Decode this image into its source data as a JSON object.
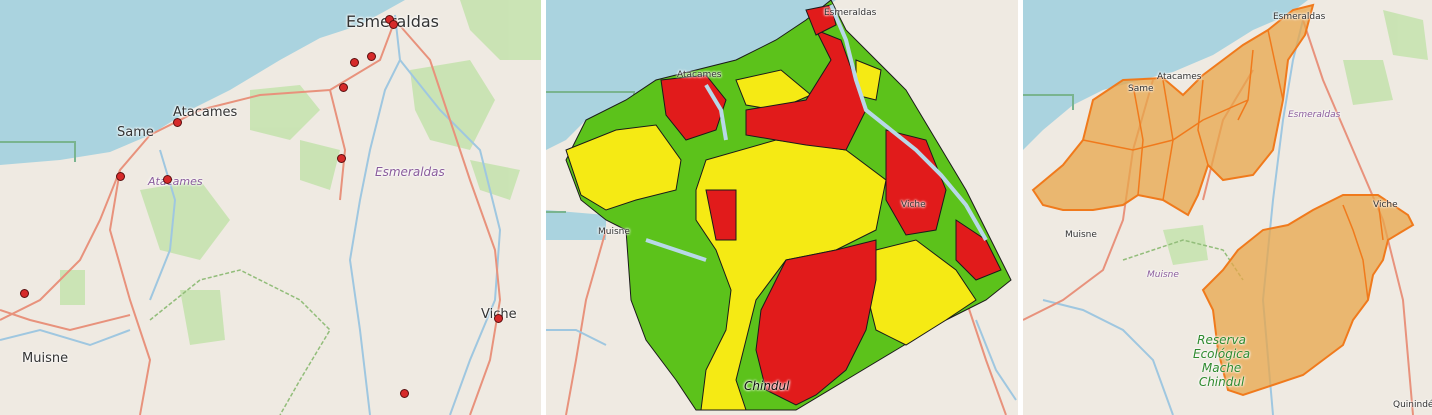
{
  "panels": [
    {
      "id": "occurrence-points",
      "labels": {
        "esmeraldas_city": "Esmeraldas",
        "atacames_town": "Atacames",
        "same_town": "Same",
        "atacames_region": "Atacames",
        "esmeraldas_region": "Esmeraldas",
        "muisne_town": "Muisne",
        "viche_town": "Viche"
      },
      "point_count": 13,
      "marker_color": "#d62a2a"
    },
    {
      "id": "suitability-classes",
      "labels": {
        "esmeraldas_city": "Esmeraldas",
        "atacames_town": "Atacames",
        "muisne_town": "Muisne",
        "viche_town": "Viche",
        "chindul": "Chindul"
      },
      "class_colors": {
        "high": "#e11b1b",
        "medium": "#f5ea14",
        "low": "#5cc21b"
      }
    },
    {
      "id": "protected-areas",
      "labels": {
        "esmeraldas_city": "Esmeraldas",
        "atacames_town": "Atacames",
        "same_town": "Same",
        "esmeraldas_region": "Esmeraldas",
        "muisne_town": "Muisne",
        "muisne_region": "Muisne",
        "viche_town": "Viche",
        "reserve_line1": "Reserva",
        "reserve_line2": "Ecológica",
        "reserve_line3": "Mache",
        "reserve_line4": "Chindul",
        "quininde_town": "Quinindé"
      },
      "polygon_fill": "#e8a54a",
      "polygon_stroke": "#f07a1c"
    }
  ],
  "base_colors": {
    "sea": "#aad3df",
    "land": "#efeae2",
    "forest": "#c7e3b0",
    "road": "#e8927c",
    "river": "#9fc7e0"
  }
}
